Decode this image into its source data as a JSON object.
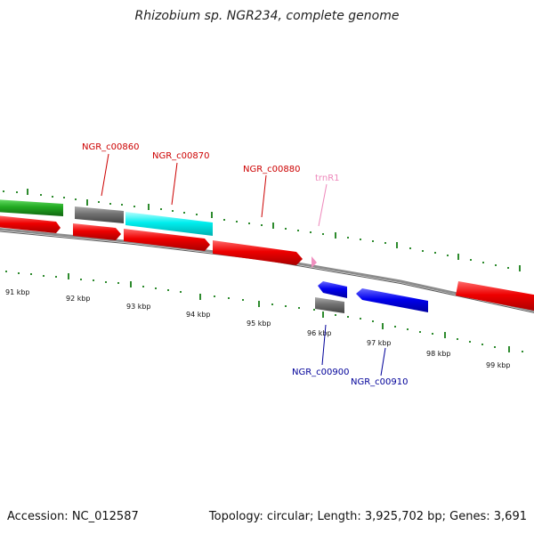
{
  "title": "Rhizobium sp. NGR234, complete genome",
  "footer": {
    "accession": "Accession: NC_012587",
    "summary": "Topology: circular; Length: 3,925,702 bp; Genes: 3,691"
  },
  "colors": {
    "backbone": "#808080",
    "tick": "#2e8b2e",
    "forward_gene_label": "#cc0000",
    "reverse_gene_label": "#000099",
    "rna_label": "#ee88bb"
  },
  "kbp_labels": [
    "91 kbp",
    "92 kbp",
    "93 kbp",
    "94 kbp",
    "95 kbp",
    "96 kbp",
    "97 kbp",
    "98 kbp",
    "99 kbp"
  ],
  "gene_labels": [
    {
      "text": "NGR_c00860",
      "color": "#cc0000"
    },
    {
      "text": "NGR_c00870",
      "color": "#cc0000"
    },
    {
      "text": "NGR_c00880",
      "color": "#cc0000"
    },
    {
      "text": "trnR1",
      "color": "#ee88bb"
    },
    {
      "text": "NGR_c00900",
      "color": "#000099"
    },
    {
      "text": "NGR_c00910",
      "color": "#000099"
    }
  ]
}
